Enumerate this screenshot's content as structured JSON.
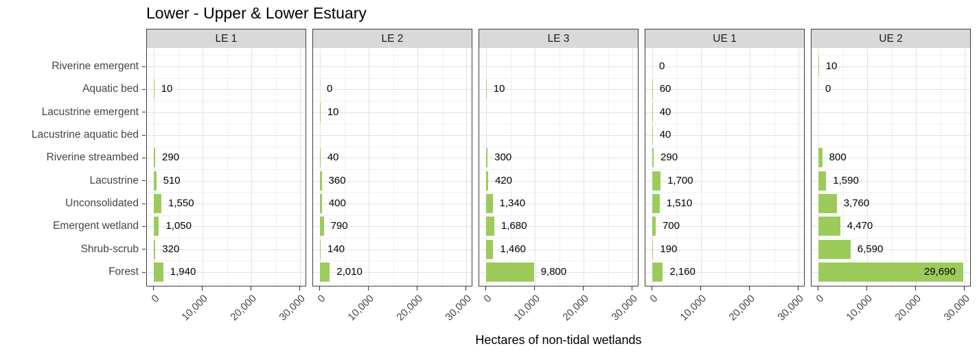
{
  "chart_data": {
    "type": "bar",
    "orientation": "horizontal",
    "title": "Lower - Upper & Lower Estuary",
    "xlabel": "Hectares of non-tidal wetlands",
    "ylabel": "",
    "grid": true,
    "legend": false,
    "bar_color": "#9ccb5b",
    "strip_bg_color": "#d9d9d9",
    "panel_border_color": "#3c3c3c",
    "xlim": [
      0,
      31500
    ],
    "x_tick_values": [
      0,
      10000,
      20000,
      30000
    ],
    "x_tick_labels": [
      "0",
      "10,000",
      "20,000",
      "30,000"
    ],
    "categories": [
      "Riverine emergent",
      "Aquatic bed",
      "Lacustrine emergent",
      "Lacustrine aquatic bed",
      "Riverine streambed",
      "Lacustrine",
      "Unconsolidated",
      "Emergent wetland",
      "Shrub-scrub",
      "Forest"
    ],
    "panels": [
      {
        "label": "LE 1",
        "values": [
          null,
          10,
          null,
          null,
          290,
          510,
          1550,
          1050,
          320,
          1940
        ],
        "value_labels": [
          "",
          "10",
          "",
          "",
          "290",
          "510",
          "1,550",
          "1,050",
          "320",
          "1,940"
        ]
      },
      {
        "label": "LE 2",
        "values": [
          null,
          0,
          10,
          null,
          40,
          360,
          400,
          790,
          140,
          2010
        ],
        "value_labels": [
          "",
          "0",
          "10",
          "",
          "40",
          "360",
          "400",
          "790",
          "140",
          "2,010"
        ]
      },
      {
        "label": "LE 3",
        "values": [
          null,
          10,
          null,
          null,
          300,
          420,
          1340,
          1680,
          1460,
          9800
        ],
        "value_labels": [
          "",
          "10",
          "",
          "",
          "300",
          "420",
          "1,340",
          "1,680",
          "1,460",
          "9,800"
        ]
      },
      {
        "label": "UE 1",
        "values": [
          0,
          60,
          40,
          40,
          290,
          1700,
          1510,
          700,
          190,
          2160
        ],
        "value_labels": [
          "0",
          "60",
          "40",
          "40",
          "290",
          "1,700",
          "1,510",
          "700",
          "190",
          "2,160"
        ]
      },
      {
        "label": "UE 2",
        "values": [
          10,
          0,
          null,
          null,
          800,
          1590,
          3760,
          4470,
          6590,
          29690
        ],
        "value_labels": [
          "10",
          "0",
          "",
          "",
          "800",
          "1,590",
          "3,760",
          "4,470",
          "6,590",
          "29,690"
        ]
      }
    ]
  }
}
